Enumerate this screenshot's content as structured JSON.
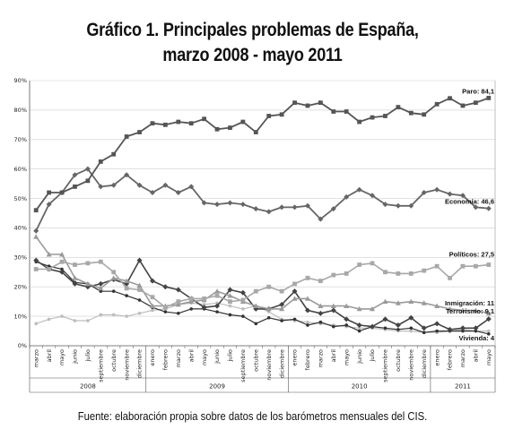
{
  "titles": {
    "line1": "Gráfico 1. Principales problemas de España,",
    "line2": "marzo 2008 - mayo 2011"
  },
  "source": "Fuente: elaboración propia sobre datos de los barómetros mensuales del CIS.",
  "chart_data": {
    "type": "line",
    "title": "Gráfico 1. Principales problemas de España, marzo 2008 - mayo 2011",
    "ylim": [
      0,
      90
    ],
    "yticks": [
      "0%",
      "10%",
      "20%",
      "30%",
      "40%",
      "50%",
      "60%",
      "70%",
      "80%",
      "90%"
    ],
    "grid": true,
    "categories": [
      "marzo",
      "abril",
      "mayo",
      "junio",
      "julio",
      "septiembre",
      "octubre",
      "noviembre",
      "diciembre",
      "enero",
      "febrero",
      "marzo",
      "abril",
      "mayo",
      "junio",
      "julio",
      "septiembre",
      "octubre",
      "noviembre",
      "diciembre",
      "enero",
      "febrero",
      "marzo",
      "abril",
      "mayo",
      "junio",
      "julio",
      "septiembre",
      "octubre",
      "noviembre",
      "diciembre",
      "enero",
      "febrero",
      "marzo",
      "abril",
      "mayo"
    ],
    "years": [
      {
        "label": "2008",
        "start": 0,
        "end": 8
      },
      {
        "label": "2009",
        "start": 9,
        "end": 19
      },
      {
        "label": "2010",
        "start": 20,
        "end": 30
      },
      {
        "label": "2011",
        "start": 31,
        "end": 35
      }
    ],
    "series": [
      {
        "name": "Paro: 84,1",
        "color": "#555555",
        "marker": "square",
        "width": 1.8,
        "values": [
          46,
          52,
          52,
          54,
          56,
          62.5,
          65,
          71,
          72.5,
          75.5,
          75,
          76,
          75.5,
          77,
          73.5,
          74,
          76,
          72.5,
          78,
          78.5,
          82.5,
          81.5,
          82.5,
          79.5,
          79.5,
          76,
          77.5,
          78,
          81,
          79,
          78.5,
          82,
          84,
          81.5,
          82.5,
          84.1
        ]
      },
      {
        "name": "Economía: 46,6",
        "color": "#666666",
        "marker": "diamond",
        "width": 1.8,
        "values": [
          39,
          48,
          52,
          58,
          60,
          54,
          54.5,
          58,
          54.5,
          52,
          54.5,
          52,
          54,
          48.5,
          48,
          48.5,
          48,
          46.5,
          45.5,
          47,
          47,
          47.5,
          43,
          46.5,
          50.5,
          53,
          51,
          48,
          47.5,
          47.5,
          52,
          53,
          51.5,
          51,
          47,
          46.6
        ]
      },
      {
        "name": "Políticos: 27,5",
        "color": "#a8a8a8",
        "marker": "square",
        "width": 1.6,
        "values": [
          26,
          26,
          28.5,
          27.5,
          28,
          28.5,
          25,
          19.5,
          19,
          16.5,
          13,
          15,
          16,
          16,
          17,
          15,
          15.5,
          18.5,
          20,
          18.5,
          21,
          23,
          22,
          24,
          24.5,
          27.5,
          28,
          25,
          24.5,
          24.5,
          25.5,
          27,
          23,
          27,
          27,
          27.5
        ]
      },
      {
        "name": "Inmigración: 11",
        "color": "#9a9a9a",
        "marker": "triangle",
        "width": 1.6,
        "values": [
          37,
          31,
          31,
          23,
          21,
          19.5,
          23,
          22,
          20.5,
          13.5,
          13.5,
          14,
          15,
          15.5,
          18.5,
          17,
          15,
          13.5,
          12.5,
          12.5,
          16,
          16,
          13.5,
          13.5,
          13.5,
          12.5,
          12.5,
          15,
          14.5,
          15,
          14.5,
          13.5,
          12.5,
          12,
          12,
          11
        ]
      },
      {
        "name": "Terrorismo: 9,1",
        "color": "#444444",
        "marker": "diamond",
        "width": 1.6,
        "values": [
          29,
          26,
          25,
          21,
          20,
          21,
          22.5,
          21,
          29,
          22,
          20,
          19,
          16,
          13,
          13.5,
          19,
          18,
          12.5,
          12.5,
          14,
          18.5,
          12,
          11,
          12,
          9,
          7,
          6.5,
          9,
          7,
          9.5,
          6,
          7.5,
          5.5,
          6,
          6,
          9.1
        ]
      },
      {
        "name": "Vivienda: 4",
        "color": "#333333",
        "marker": "dot",
        "width": 1.2,
        "values": [
          28.5,
          27,
          26,
          21.5,
          21,
          18.5,
          18.5,
          17,
          15.5,
          13,
          11.5,
          11,
          12.5,
          12.5,
          11.5,
          10.5,
          10,
          7.5,
          9.5,
          8.5,
          9,
          7,
          8,
          6.5,
          7,
          5,
          6.5,
          6,
          5.5,
          6,
          4.5,
          5,
          5,
          5,
          5,
          4
        ]
      },
      {
        "name": "",
        "color": "#bdbdbd",
        "marker": "dot",
        "width": 1.2,
        "values": [
          7.5,
          9,
          10,
          8.5,
          8.5,
          10.5,
          10.5,
          10,
          11,
          12,
          12.5,
          14,
          14.5,
          14,
          14.5,
          13.5,
          12.5,
          13.5,
          11.5,
          9,
          8.5,
          8,
          7.5,
          7,
          6.5,
          6,
          6,
          5.5,
          5,
          5,
          4.5,
          4.5,
          5,
          5.5,
          5,
          5
        ]
      }
    ]
  }
}
